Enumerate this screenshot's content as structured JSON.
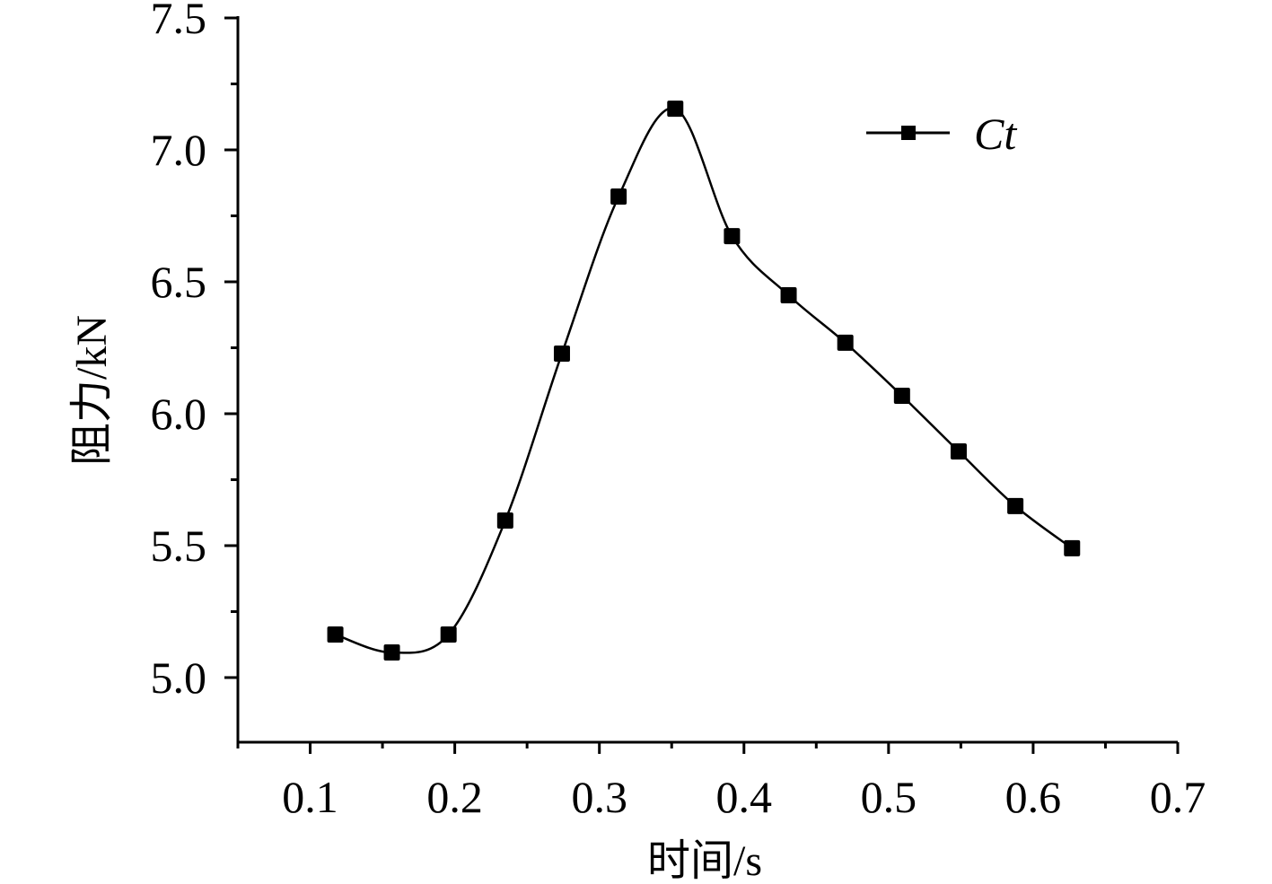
{
  "chart_data": {
    "type": "line",
    "title": "",
    "xlabel": "时间/s",
    "ylabel": "阻力/kN",
    "xlim": [
      0.05,
      0.7
    ],
    "ylim": [
      4.755,
      7.5
    ],
    "xticks": [
      0.1,
      0.2,
      0.3,
      0.4,
      0.5,
      0.6,
      0.7
    ],
    "xtick_labels": [
      "0.1",
      "0.2",
      "0.3",
      "0.4",
      "0.5",
      "0.6",
      "0.7"
    ],
    "yticks": [
      5.0,
      5.5,
      6.0,
      6.5,
      7.0,
      7.5
    ],
    "ytick_labels": [
      "5.0",
      "5.5",
      "6.0",
      "6.5",
      "7.0",
      "7.5"
    ],
    "grid": false,
    "legend_position": "top-right",
    "series": [
      {
        "name": "Ct",
        "color": "#000000",
        "marker": "square",
        "smooth": true,
        "x": [
          0.1174,
          0.1565,
          0.1957,
          0.2349,
          0.2741,
          0.3133,
          0.3525,
          0.3917,
          0.4309,
          0.4701,
          0.5093,
          0.5485,
          0.5877,
          0.6269
        ],
        "y": [
          5.163,
          5.095,
          5.163,
          5.595,
          6.228,
          6.823,
          7.156,
          6.673,
          6.449,
          6.269,
          6.068,
          5.857,
          5.65,
          5.49
        ]
      }
    ]
  }
}
